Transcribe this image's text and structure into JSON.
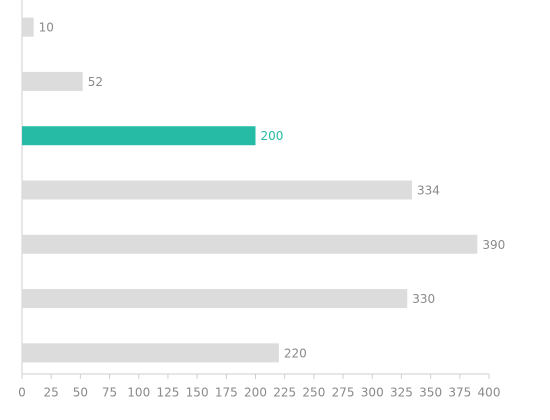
{
  "chart_data": {
    "type": "bar",
    "orientation": "horizontal",
    "categories": [
      null,
      null,
      null,
      null,
      null,
      null,
      null
    ],
    "values": [
      10,
      52,
      200,
      334,
      390,
      330,
      220
    ],
    "color": "#dcdcdc",
    "highlight": {
      "index": 2,
      "color": "#26bba4"
    },
    "xlim": [
      0,
      400
    ],
    "xticks": [
      0,
      25,
      50,
      75,
      100,
      125,
      150,
      175,
      200,
      225,
      250,
      275,
      300,
      325,
      350,
      375,
      400
    ]
  }
}
